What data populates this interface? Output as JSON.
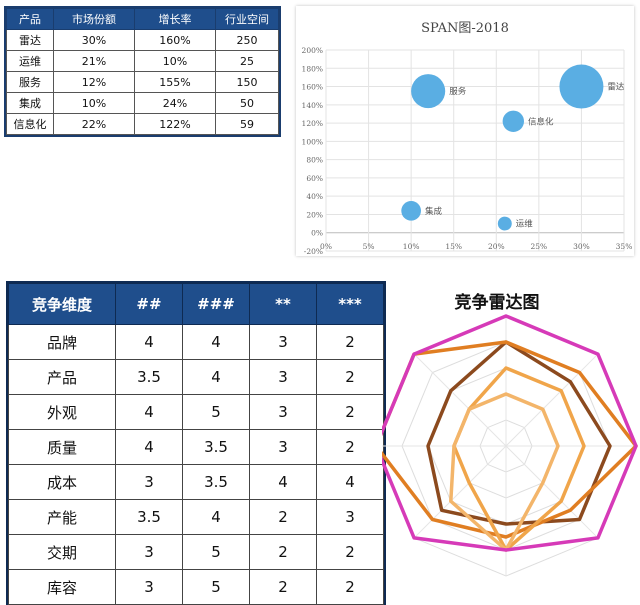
{
  "market_table": {
    "headers": [
      "产品",
      "市场份额",
      "增长率",
      "行业空间"
    ],
    "rows": [
      [
        "雷达",
        "30%",
        "160%",
        "250"
      ],
      [
        "运维",
        "21%",
        "10%",
        "25"
      ],
      [
        "服务",
        "12%",
        "155%",
        "150"
      ],
      [
        "集成",
        "10%",
        "24%",
        "50"
      ],
      [
        "信息化",
        "22%",
        "122%",
        "59"
      ]
    ]
  },
  "competition_table": {
    "headers": [
      "竞争维度",
      "##",
      "###",
      "**",
      "***"
    ],
    "rows": [
      [
        "品牌",
        "4",
        "4",
        "3",
        "2"
      ],
      [
        "产品",
        "3.5",
        "4",
        "3",
        "2"
      ],
      [
        "外观",
        "4",
        "5",
        "3",
        "2"
      ],
      [
        "质量",
        "4",
        "3.5",
        "3",
        "2"
      ],
      [
        "成本",
        "3",
        "3.5",
        "4",
        "4"
      ],
      [
        "产能",
        "3.5",
        "4",
        "2",
        "3"
      ],
      [
        "交期",
        "3",
        "5",
        "2",
        "2"
      ],
      [
        "库容",
        "3",
        "5",
        "2",
        "2"
      ]
    ]
  },
  "chart_data": [
    {
      "type": "scatter",
      "subtype": "bubble",
      "title": "SPAN图-2018",
      "xlabel": "",
      "ylabel": "",
      "xlim": [
        0,
        35
      ],
      "ylim": [
        -20,
        200
      ],
      "x_ticks": [
        "0%",
        "5%",
        "10%",
        "15%",
        "20%",
        "25%",
        "30%",
        "35%"
      ],
      "y_ticks": [
        "200%",
        "180%",
        "160%",
        "140%",
        "120%",
        "100%",
        "80%",
        "60%",
        "40%",
        "20%",
        "0%",
        "-20%"
      ],
      "points": [
        {
          "label": "雷达",
          "x": 30,
          "y": 160,
          "size": 250
        },
        {
          "label": "运维",
          "x": 21,
          "y": 10,
          "size": 25
        },
        {
          "label": "服务",
          "x": 12,
          "y": 155,
          "size": 150
        },
        {
          "label": "集成",
          "x": 10,
          "y": 24,
          "size": 50
        },
        {
          "label": "信息化",
          "x": 22,
          "y": 122,
          "size": 59
        }
      ],
      "color": "#5aaee3",
      "grid": true
    },
    {
      "type": "radar",
      "title": "竞争雷达图",
      "axes_count": 8,
      "max": 5,
      "series": [
        {
          "values": [
            4,
            3.5,
            4,
            4,
            3,
            3.5,
            3,
            3
          ],
          "color": "#8c4a1e"
        },
        {
          "values": [
            4,
            4,
            5,
            3.5,
            3.5,
            4,
            5,
            5
          ],
          "color": "#e07e22"
        },
        {
          "values": [
            3,
            3,
            3,
            3,
            4,
            2,
            2,
            2
          ],
          "color": "#f0a54a"
        },
        {
          "values": [
            2,
            2,
            2,
            2,
            4,
            3,
            2,
            2
          ],
          "color": "#f3b56a"
        },
        {
          "values": [
            5,
            5,
            5,
            5,
            4,
            5,
            5,
            5
          ],
          "color": "#d63ab8"
        }
      ]
    }
  ]
}
